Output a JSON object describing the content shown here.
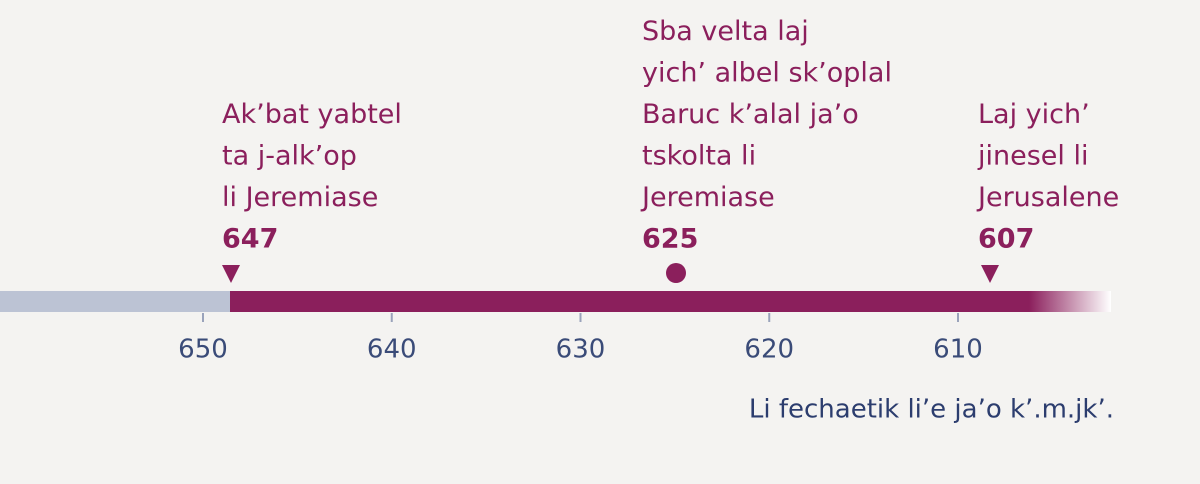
{
  "events": [
    {
      "lines": [
        "Ak’bat yabtel",
        "ta j-alk’op",
        "li Jeremiase"
      ],
      "year": 647
    },
    {
      "lines": [
        "Sba velta laj",
        "yich’ albel sk’oplal",
        "Baruc k’alal ja’o",
        "tskolta li",
        "Jeremiase"
      ],
      "year": 625
    },
    {
      "lines": [
        "Laj yich’",
        "jinesel li",
        "Jerusalene"
      ],
      "year": 607
    }
  ],
  "axis": {
    "ticks": [
      650,
      640,
      630,
      620,
      610
    ]
  },
  "caption": "Li fechaetik li’e ja’o k’.m.jk’."
}
